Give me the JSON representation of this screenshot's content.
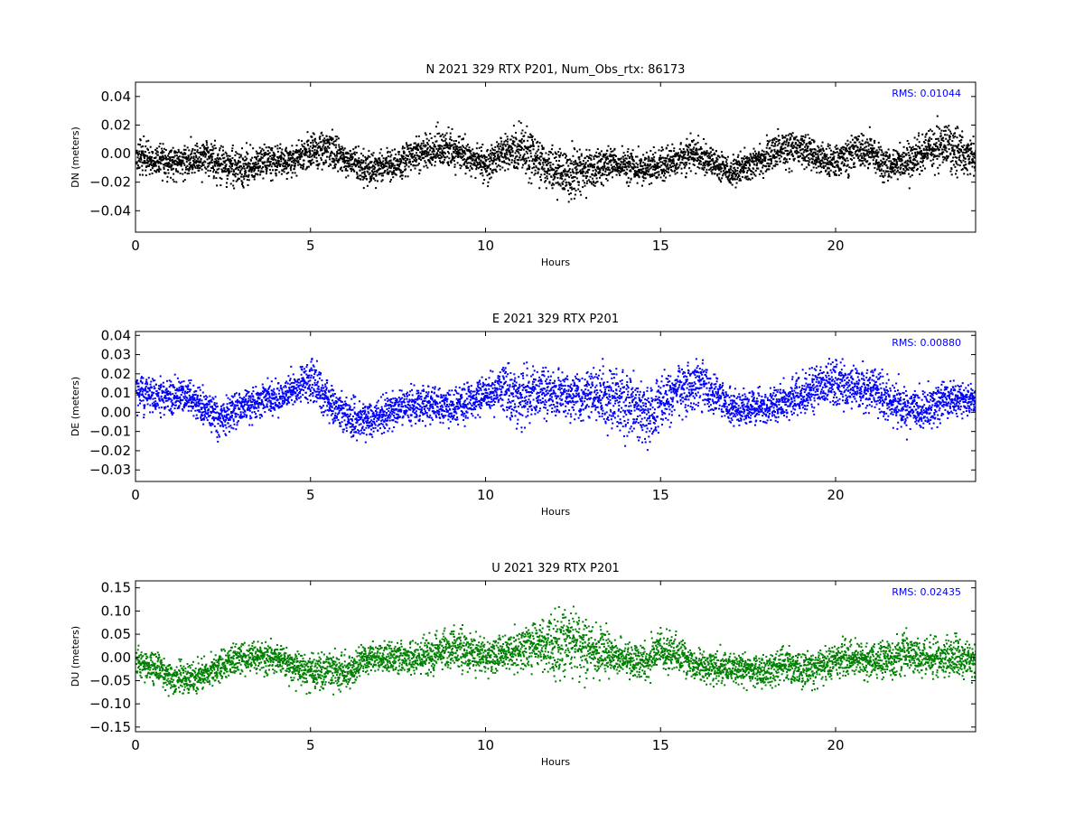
{
  "chart_data": [
    {
      "type": "scatter",
      "title": "N 2021 329 RTX  P201, Num_Obs_rtx: 86173",
      "xlabel": "Hours",
      "ylabel": "DN (meters)",
      "xlim": [
        0,
        24
      ],
      "ylim": [
        -0.055,
        0.05
      ],
      "xticks": [
        0,
        5,
        10,
        15,
        20
      ],
      "yticks": [
        -0.04,
        -0.02,
        0.0,
        0.02,
        0.04
      ],
      "ytick_labels": [
        "−0.04",
        "−0.02",
        "0.00",
        "0.02",
        "0.04"
      ],
      "grid": false,
      "color": "#000000",
      "rms_label": "RMS:  0.01044",
      "rms_color": "#0000ff",
      "series": [
        {
          "x": [
            0,
            0.5,
            1,
            1.5,
            2,
            2.5,
            3,
            3.5,
            4,
            4.5,
            5,
            5.5,
            6,
            6.5,
            7,
            7.5,
            8,
            8.5,
            9,
            9.5,
            10,
            10.5,
            11,
            11.5,
            12,
            12.5,
            13,
            13.5,
            14,
            14.5,
            15,
            15.5,
            16,
            16.5,
            17,
            17.5,
            18,
            18.5,
            19,
            19.5,
            20,
            20.5,
            21,
            21.5,
            22,
            22.5,
            23,
            23.5,
            24
          ],
          "center": [
            -0.002,
            -0.004,
            -0.005,
            -0.004,
            -0.003,
            -0.008,
            -0.01,
            -0.006,
            -0.004,
            -0.004,
            0.003,
            0.004,
            -0.004,
            -0.01,
            -0.008,
            -0.006,
            -0.001,
            0.003,
            0.004,
            -0.002,
            -0.007,
            0.001,
            0.004,
            -0.004,
            -0.012,
            -0.015,
            -0.01,
            -0.006,
            -0.009,
            -0.01,
            -0.007,
            -0.004,
            0.001,
            -0.006,
            -0.012,
            -0.008,
            -0.002,
            0.004,
            0.005,
            -0.002,
            -0.006,
            0.003,
            0.002,
            -0.01,
            -0.005,
            0.002,
            0.006,
            0.002,
            -0.003
          ],
          "spread": [
            0.012,
            0.01,
            0.01,
            0.01,
            0.012,
            0.013,
            0.011,
            0.01,
            0.01,
            0.01,
            0.011,
            0.012,
            0.01,
            0.01,
            0.01,
            0.01,
            0.011,
            0.012,
            0.012,
            0.01,
            0.01,
            0.011,
            0.016,
            0.016,
            0.016,
            0.016,
            0.012,
            0.01,
            0.01,
            0.01,
            0.01,
            0.01,
            0.011,
            0.01,
            0.01,
            0.01,
            0.011,
            0.012,
            0.012,
            0.01,
            0.011,
            0.012,
            0.011,
            0.01,
            0.011,
            0.013,
            0.014,
            0.012,
            0.012
          ]
        }
      ]
    },
    {
      "type": "scatter",
      "title": "E 2021 329 RTX  P201",
      "xlabel": "Hours",
      "ylabel": "DE (meters)",
      "xlim": [
        0,
        24
      ],
      "ylim": [
        -0.036,
        0.042
      ],
      "xticks": [
        0,
        5,
        10,
        15,
        20
      ],
      "yticks": [
        -0.03,
        -0.02,
        -0.01,
        0.0,
        0.01,
        0.02,
        0.03,
        0.04
      ],
      "ytick_labels": [
        "−0.03",
        "−0.02",
        "−0.01",
        "0.00",
        "0.01",
        "0.02",
        "0.03",
        "0.04"
      ],
      "grid": false,
      "color": "#0000ff",
      "rms_label": "RMS:  0.00880",
      "rms_color": "#0000ff",
      "series": [
        {
          "x": [
            0,
            0.5,
            1,
            1.5,
            2,
            2.5,
            3,
            3.5,
            4,
            4.5,
            5,
            5.5,
            6,
            6.5,
            7,
            7.5,
            8,
            8.5,
            9,
            9.5,
            10,
            10.5,
            11,
            11.5,
            12,
            12.5,
            13,
            13.5,
            14,
            14.5,
            15,
            15.5,
            16,
            16.5,
            17,
            17.5,
            18,
            18.5,
            19,
            19.5,
            20,
            20.5,
            21,
            21.5,
            22,
            22.5,
            23,
            23.5,
            24
          ],
          "center": [
            0.012,
            0.01,
            0.008,
            0.009,
            0.002,
            -0.003,
            0.004,
            0.006,
            0.008,
            0.012,
            0.018,
            0.006,
            -0.002,
            -0.004,
            -0.001,
            0.003,
            0.004,
            0.006,
            0.002,
            0.006,
            0.01,
            0.012,
            0.008,
            0.012,
            0.01,
            0.008,
            0.01,
            0.008,
            0.004,
            -0.002,
            0.006,
            0.012,
            0.014,
            0.01,
            0.003,
            0.002,
            0.004,
            0.006,
            0.01,
            0.014,
            0.016,
            0.014,
            0.012,
            0.006,
            0.002,
            0.002,
            0.006,
            0.008,
            0.006
          ],
          "spread": [
            0.008,
            0.008,
            0.008,
            0.008,
            0.008,
            0.009,
            0.008,
            0.008,
            0.008,
            0.008,
            0.01,
            0.01,
            0.008,
            0.008,
            0.008,
            0.008,
            0.008,
            0.008,
            0.008,
            0.008,
            0.009,
            0.012,
            0.014,
            0.012,
            0.01,
            0.01,
            0.012,
            0.014,
            0.016,
            0.016,
            0.012,
            0.012,
            0.012,
            0.01,
            0.008,
            0.008,
            0.008,
            0.008,
            0.009,
            0.01,
            0.012,
            0.012,
            0.012,
            0.01,
            0.01,
            0.01,
            0.009,
            0.008,
            0.008
          ]
        }
      ]
    },
    {
      "type": "scatter",
      "title": "U 2021 329 RTX  P201",
      "xlabel": "Hours",
      "ylabel": "DU (meters)",
      "xlim": [
        0,
        24
      ],
      "ylim": [
        -0.16,
        0.165
      ],
      "xticks": [
        0,
        5,
        10,
        15,
        20
      ],
      "yticks": [
        -0.15,
        -0.1,
        -0.05,
        0.0,
        0.05,
        0.1,
        0.15
      ],
      "ytick_labels": [
        "−0.15",
        "−0.10",
        "−0.05",
        "0.00",
        "0.05",
        "0.10",
        "0.15"
      ],
      "grid": false,
      "color": "#008000",
      "rms_label": "RMS:  0.02435",
      "rms_color": "#0000ff",
      "series": [
        {
          "x": [
            0,
            0.5,
            1,
            1.5,
            2,
            2.5,
            3,
            3.5,
            4,
            4.5,
            5,
            5.5,
            6,
            6.5,
            7,
            7.5,
            8,
            8.5,
            9,
            9.5,
            10,
            10.5,
            11,
            11.5,
            12,
            12.5,
            13,
            13.5,
            14,
            14.5,
            15,
            15.5,
            16,
            16.5,
            17,
            17.5,
            18,
            18.5,
            19,
            19.5,
            20,
            20.5,
            21,
            21.5,
            22,
            22.5,
            23,
            23.5,
            24
          ],
          "center": [
            -0.01,
            -0.02,
            -0.04,
            -0.045,
            -0.03,
            -0.01,
            0.0,
            0.005,
            0.0,
            -0.02,
            -0.03,
            -0.025,
            -0.03,
            0.0,
            0.005,
            0.0,
            0.0,
            0.01,
            0.02,
            0.01,
            0.0,
            0.01,
            0.02,
            0.025,
            0.03,
            0.03,
            0.02,
            0.01,
            0.0,
            -0.015,
            0.02,
            0.005,
            -0.015,
            -0.02,
            -0.02,
            -0.025,
            -0.03,
            -0.01,
            -0.03,
            -0.02,
            0.0,
            0.0,
            -0.005,
            0.0,
            0.01,
            0.005,
            0.0,
            0.0,
            -0.01
          ],
          "spread": [
            0.03,
            0.03,
            0.03,
            0.03,
            0.03,
            0.03,
            0.03,
            0.03,
            0.03,
            0.03,
            0.035,
            0.035,
            0.035,
            0.03,
            0.03,
            0.03,
            0.03,
            0.035,
            0.04,
            0.035,
            0.035,
            0.035,
            0.04,
            0.045,
            0.07,
            0.07,
            0.05,
            0.04,
            0.035,
            0.035,
            0.035,
            0.035,
            0.03,
            0.03,
            0.03,
            0.03,
            0.03,
            0.035,
            0.035,
            0.035,
            0.035,
            0.035,
            0.035,
            0.04,
            0.04,
            0.035,
            0.035,
            0.035,
            0.035
          ]
        }
      ]
    }
  ]
}
